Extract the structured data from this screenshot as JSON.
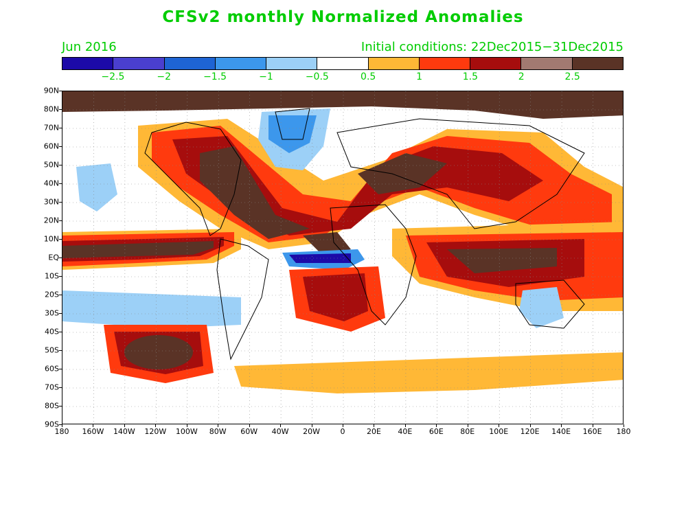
{
  "header": {
    "title": "CFSv2 monthly Normalized Anomalies",
    "month": "Jun 2016",
    "initial": "Initial conditions: 22Dec2015−31Dec2015"
  },
  "colorbar": {
    "colors": [
      "#1c0aa8",
      "#4a3fcf",
      "#1e64d4",
      "#3c97ec",
      "#9cd0f7",
      "#ffffff",
      "#ffb836",
      "#ff3a0e",
      "#a60d0d",
      "#a27a71",
      "#5a3326"
    ],
    "labels": [
      "−2.5",
      "−2",
      "−1.5",
      "−1",
      "−0.5",
      "0.5",
      "1",
      "1.5",
      "2",
      "2.5"
    ]
  },
  "axes": {
    "lat_labels": [
      "90N",
      "80N",
      "70N",
      "60N",
      "50N",
      "40N",
      "30N",
      "20N",
      "10N",
      "EQ",
      "10S",
      "20S",
      "30S",
      "40S",
      "50S",
      "60S",
      "70S",
      "80S",
      "90S"
    ],
    "lon_labels": [
      "180",
      "160W",
      "140W",
      "120W",
      "100W",
      "80W",
      "60W",
      "40W",
      "20W",
      "0",
      "20E",
      "40E",
      "60E",
      "80E",
      "100E",
      "120E",
      "140E",
      "160E",
      "180"
    ]
  },
  "map_colors": {
    "very_strong_pos": "#5a3326",
    "strong_pos": "#a27a71",
    "dark_red": "#a60d0d",
    "red": "#ff3a0e",
    "orange": "#ffb836",
    "light_blue": "#9cd0f7",
    "blue": "#3c97ec",
    "dark_blue": "#1c0aa8",
    "land_outline": "#000000"
  }
}
